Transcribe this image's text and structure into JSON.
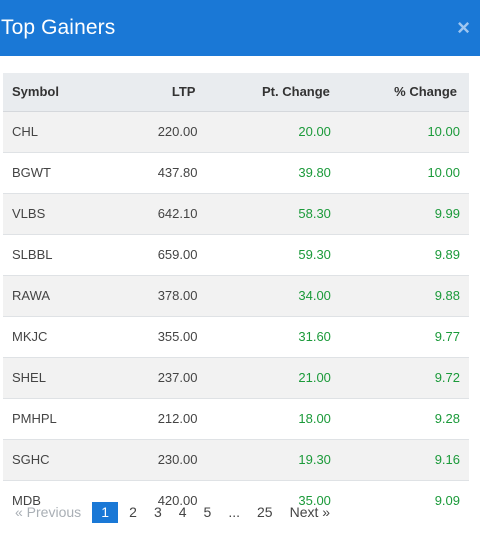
{
  "modal": {
    "title": "Top Gainers",
    "close_glyph": "×"
  },
  "table": {
    "headers": {
      "symbol": "Symbol",
      "ltp": "LTP",
      "pt_change": "Pt. Change",
      "pct_change": "% Change"
    },
    "rows": [
      {
        "symbol": "CHL",
        "ltp": "220.00",
        "pt_change": "20.00",
        "pct_change": "10.00"
      },
      {
        "symbol": "BGWT",
        "ltp": "437.80",
        "pt_change": "39.80",
        "pct_change": "10.00"
      },
      {
        "symbol": "VLBS",
        "ltp": "642.10",
        "pt_change": "58.30",
        "pct_change": "9.99"
      },
      {
        "symbol": "SLBBL",
        "ltp": "659.00",
        "pt_change": "59.30",
        "pct_change": "9.89"
      },
      {
        "symbol": "RAWA",
        "ltp": "378.00",
        "pt_change": "34.00",
        "pct_change": "9.88"
      },
      {
        "symbol": "MKJC",
        "ltp": "355.00",
        "pt_change": "31.60",
        "pct_change": "9.77"
      },
      {
        "symbol": "SHEL",
        "ltp": "237.00",
        "pt_change": "21.00",
        "pct_change": "9.72"
      },
      {
        "symbol": "PMHPL",
        "ltp": "212.00",
        "pt_change": "18.00",
        "pct_change": "9.28"
      },
      {
        "symbol": "SGHC",
        "ltp": "230.00",
        "pt_change": "19.30",
        "pct_change": "9.16"
      },
      {
        "symbol": "MDB",
        "ltp": "420.00",
        "pt_change": "35.00",
        "pct_change": "9.09"
      }
    ]
  },
  "pagination": {
    "previous": "« Previous",
    "pages": [
      "1",
      "2",
      "3",
      "4",
      "5",
      "...",
      "25"
    ],
    "active_page": "1",
    "next": "Next »"
  },
  "colors": {
    "header_bg": "#1a78d6",
    "gain": "#1b9a3a"
  }
}
